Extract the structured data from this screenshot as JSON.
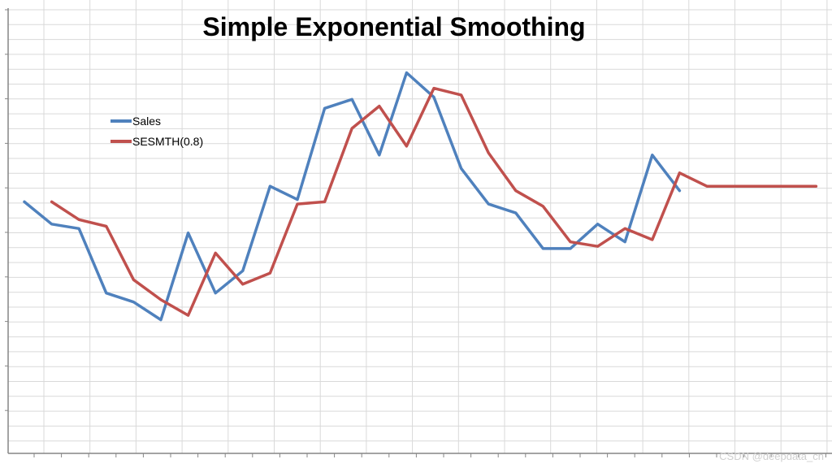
{
  "chart_data": {
    "type": "line",
    "title": "Simple Exponential Smoothing",
    "xlabel": "",
    "ylabel": "",
    "ylim": [
      0,
      100
    ],
    "x": [
      1,
      2,
      3,
      4,
      5,
      6,
      7,
      8,
      9,
      10,
      11,
      12,
      13,
      14,
      15,
      16,
      17,
      18,
      19,
      20,
      21,
      22,
      23,
      24,
      25,
      26,
      27,
      28,
      29,
      30
    ],
    "series": [
      {
        "name": "Sales",
        "color": "#4F81BD",
        "values": [
          56.5,
          51.5,
          50.5,
          36.0,
          34.0,
          30.0,
          49.5,
          36.0,
          41.0,
          60.0,
          57.0,
          77.5,
          79.5,
          67.0,
          85.5,
          80.0,
          64.0,
          56.0,
          54.0,
          46.0,
          46.0,
          51.5,
          47.5,
          67.0,
          59.0,
          null,
          null,
          null,
          null,
          null
        ]
      },
      {
        "name": "SESMTH(0.8)",
        "color": "#C0504D",
        "values": [
          null,
          56.5,
          52.5,
          51.0,
          39.0,
          34.5,
          31.0,
          45.0,
          38.0,
          40.5,
          56.0,
          56.5,
          73.0,
          78.0,
          69.0,
          82.0,
          80.5,
          67.5,
          59.0,
          55.5,
          47.5,
          46.5,
          50.5,
          48.0,
          63.0,
          60.0,
          60.0,
          60.0,
          60.0,
          60.0
        ]
      }
    ],
    "grid": true,
    "legend": "top-left"
  },
  "watermark": "CSDN @deepdata_cn"
}
